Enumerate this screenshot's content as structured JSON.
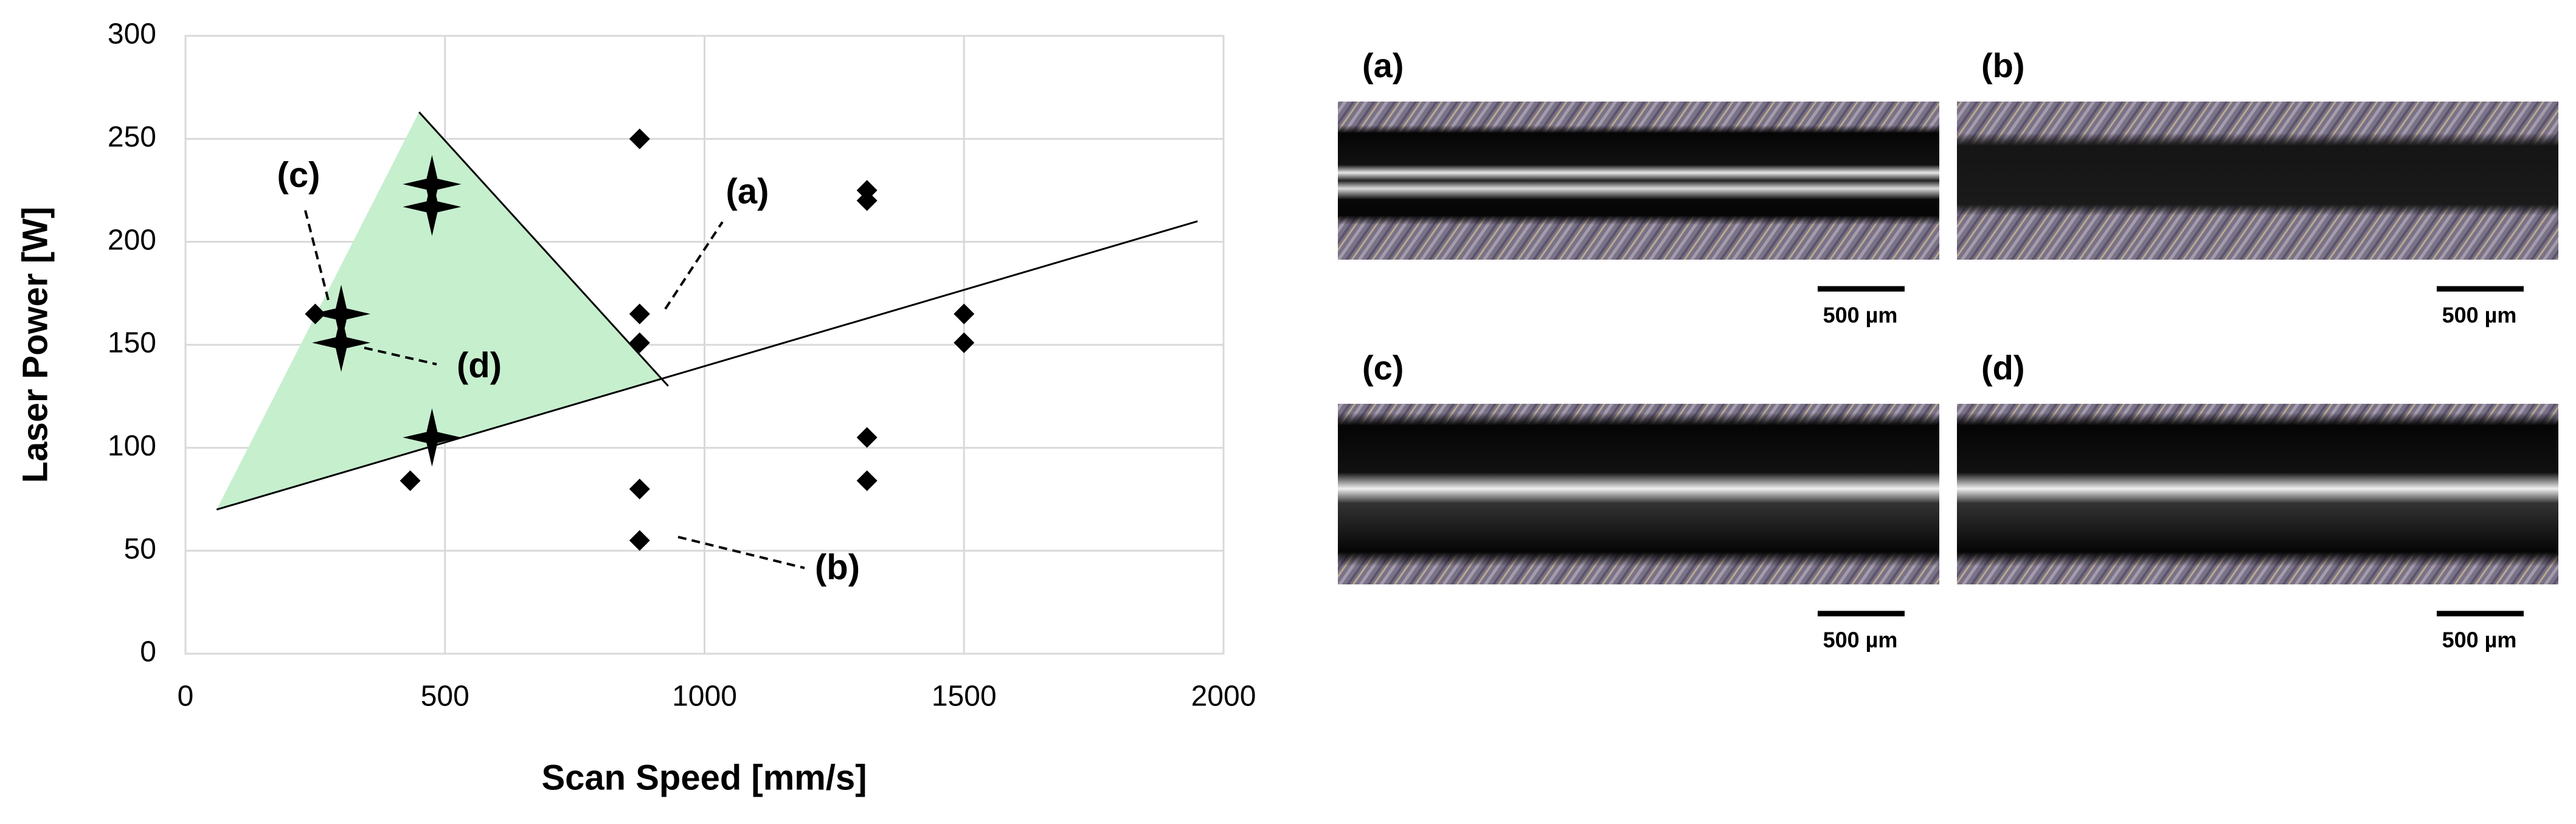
{
  "chart_data": {
    "type": "scatter",
    "xlabel": "Scan Speed [mm/s]",
    "ylabel": "Laser Power [W]",
    "xlim": [
      0,
      2000
    ],
    "xticks": [
      0,
      500,
      1000,
      1500,
      2000
    ],
    "ylim": [
      0,
      300
    ],
    "yticks": [
      0,
      50,
      100,
      150,
      200,
      250,
      300
    ],
    "grid": true,
    "series": [
      {
        "marker": "diamond",
        "color": "#000000",
        "x": [
          250,
          433,
          875,
          875,
          875,
          875,
          875,
          1313,
          1313,
          1313,
          1313,
          1500,
          1500
        ],
        "values": [
          165,
          84,
          250,
          165,
          151,
          80,
          55,
          225,
          220,
          105,
          84,
          165,
          151
        ]
      },
      {
        "marker": "star",
        "color": "#000000",
        "x": [
          300,
          300,
          475,
          475,
          475
        ],
        "values": [
          165,
          151,
          228,
          217,
          105
        ]
      }
    ],
    "region": {
      "color": "#c6efce",
      "x": [
        60,
        450,
        917
      ],
      "values": [
        70,
        263,
        133
      ]
    },
    "lines": [
      {
        "color": "#000000",
        "x": [
          60,
          1950
        ],
        "values": [
          70,
          210
        ]
      },
      {
        "color": "#000000",
        "x": [
          450,
          930
        ],
        "values": [
          263,
          130
        ]
      }
    ],
    "annotations": [
      "(a)",
      "(b)",
      "(c)",
      "(d)"
    ]
  },
  "panels": [
    {
      "label": "(a)",
      "scale_bar": "500 µm"
    },
    {
      "label": "(b)",
      "scale_bar": "500 µm"
    },
    {
      "label": "(c)",
      "scale_bar": "500 µm"
    },
    {
      "label": "(d)",
      "scale_bar": "500 µm"
    }
  ]
}
